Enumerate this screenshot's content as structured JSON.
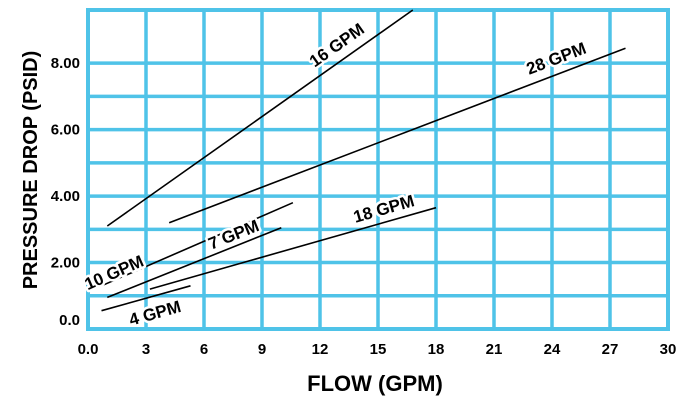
{
  "chart_data": {
    "type": "line",
    "xlabel": "FLOW (GPM)",
    "ylabel": "PRESSURE DROP (PSID)",
    "xlim": [
      0,
      30
    ],
    "ylim": [
      0,
      9.6
    ],
    "x_ticks": [
      "0.0",
      "3",
      "6",
      "9",
      "12",
      "15",
      "18",
      "21",
      "24",
      "27",
      "30"
    ],
    "y_ticks": [
      {
        "value": 0,
        "label": "0.0"
      },
      {
        "value": 2,
        "label": "2.00"
      },
      {
        "value": 4,
        "label": "4.00"
      },
      {
        "value": 6,
        "label": "6.00"
      },
      {
        "value": 8,
        "label": "8.00"
      }
    ],
    "grid": true,
    "grid_color": "#4fc3e8",
    "series": [
      {
        "name": "16 GPM",
        "x": [
          1.0,
          16.8
        ],
        "y": [
          3.1,
          9.6
        ]
      },
      {
        "name": "28 GPM",
        "x": [
          4.2,
          27.8
        ],
        "y": [
          3.2,
          8.45
        ]
      },
      {
        "name": "10 GPM",
        "x": [
          0.7,
          10.6
        ],
        "y": [
          1.3,
          3.8
        ]
      },
      {
        "name": "7 GPM",
        "x": [
          1.0,
          10.0
        ],
        "y": [
          0.95,
          3.05
        ]
      },
      {
        "name": "18 GPM",
        "x": [
          3.2,
          18.0
        ],
        "y": [
          1.2,
          3.65
        ]
      },
      {
        "name": "4 GPM",
        "x": [
          0.7,
          5.3
        ],
        "y": [
          0.55,
          1.3
        ]
      }
    ]
  }
}
